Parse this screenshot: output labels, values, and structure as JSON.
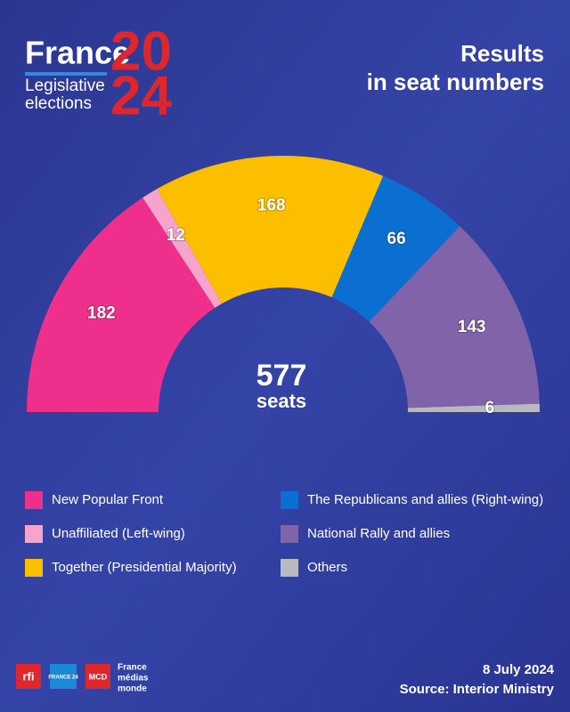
{
  "header": {
    "brand": "France",
    "year_top": "20",
    "year_bottom": "24",
    "subtitle_lines": [
      "Legislative",
      "elections"
    ],
    "title_lines": [
      "Results",
      "in seat numbers"
    ]
  },
  "chart_data": {
    "type": "semicircle",
    "categories": [
      "New Popular Front",
      "Unaffiliated (Left-wing)",
      "Together (Presidential Majority)",
      "The Republicans and allies (Right-wing)",
      "National Rally and allies",
      "Others"
    ],
    "values": [
      182,
      12,
      168,
      66,
      143,
      6
    ],
    "colors": [
      "#ef2f8c",
      "#f6a4cb",
      "#fbbf00",
      "#0b6fd2",
      "#8063a9",
      "#b9b9c2"
    ],
    "total": 577,
    "total_label": "seats"
  },
  "footer": {
    "date": "8 July 2024",
    "source": "Source: Interior Ministry",
    "logos": [
      "rfi",
      "FRANCE 24",
      "MCD"
    ],
    "group_lines": [
      "France",
      "médias",
      "monde"
    ]
  }
}
